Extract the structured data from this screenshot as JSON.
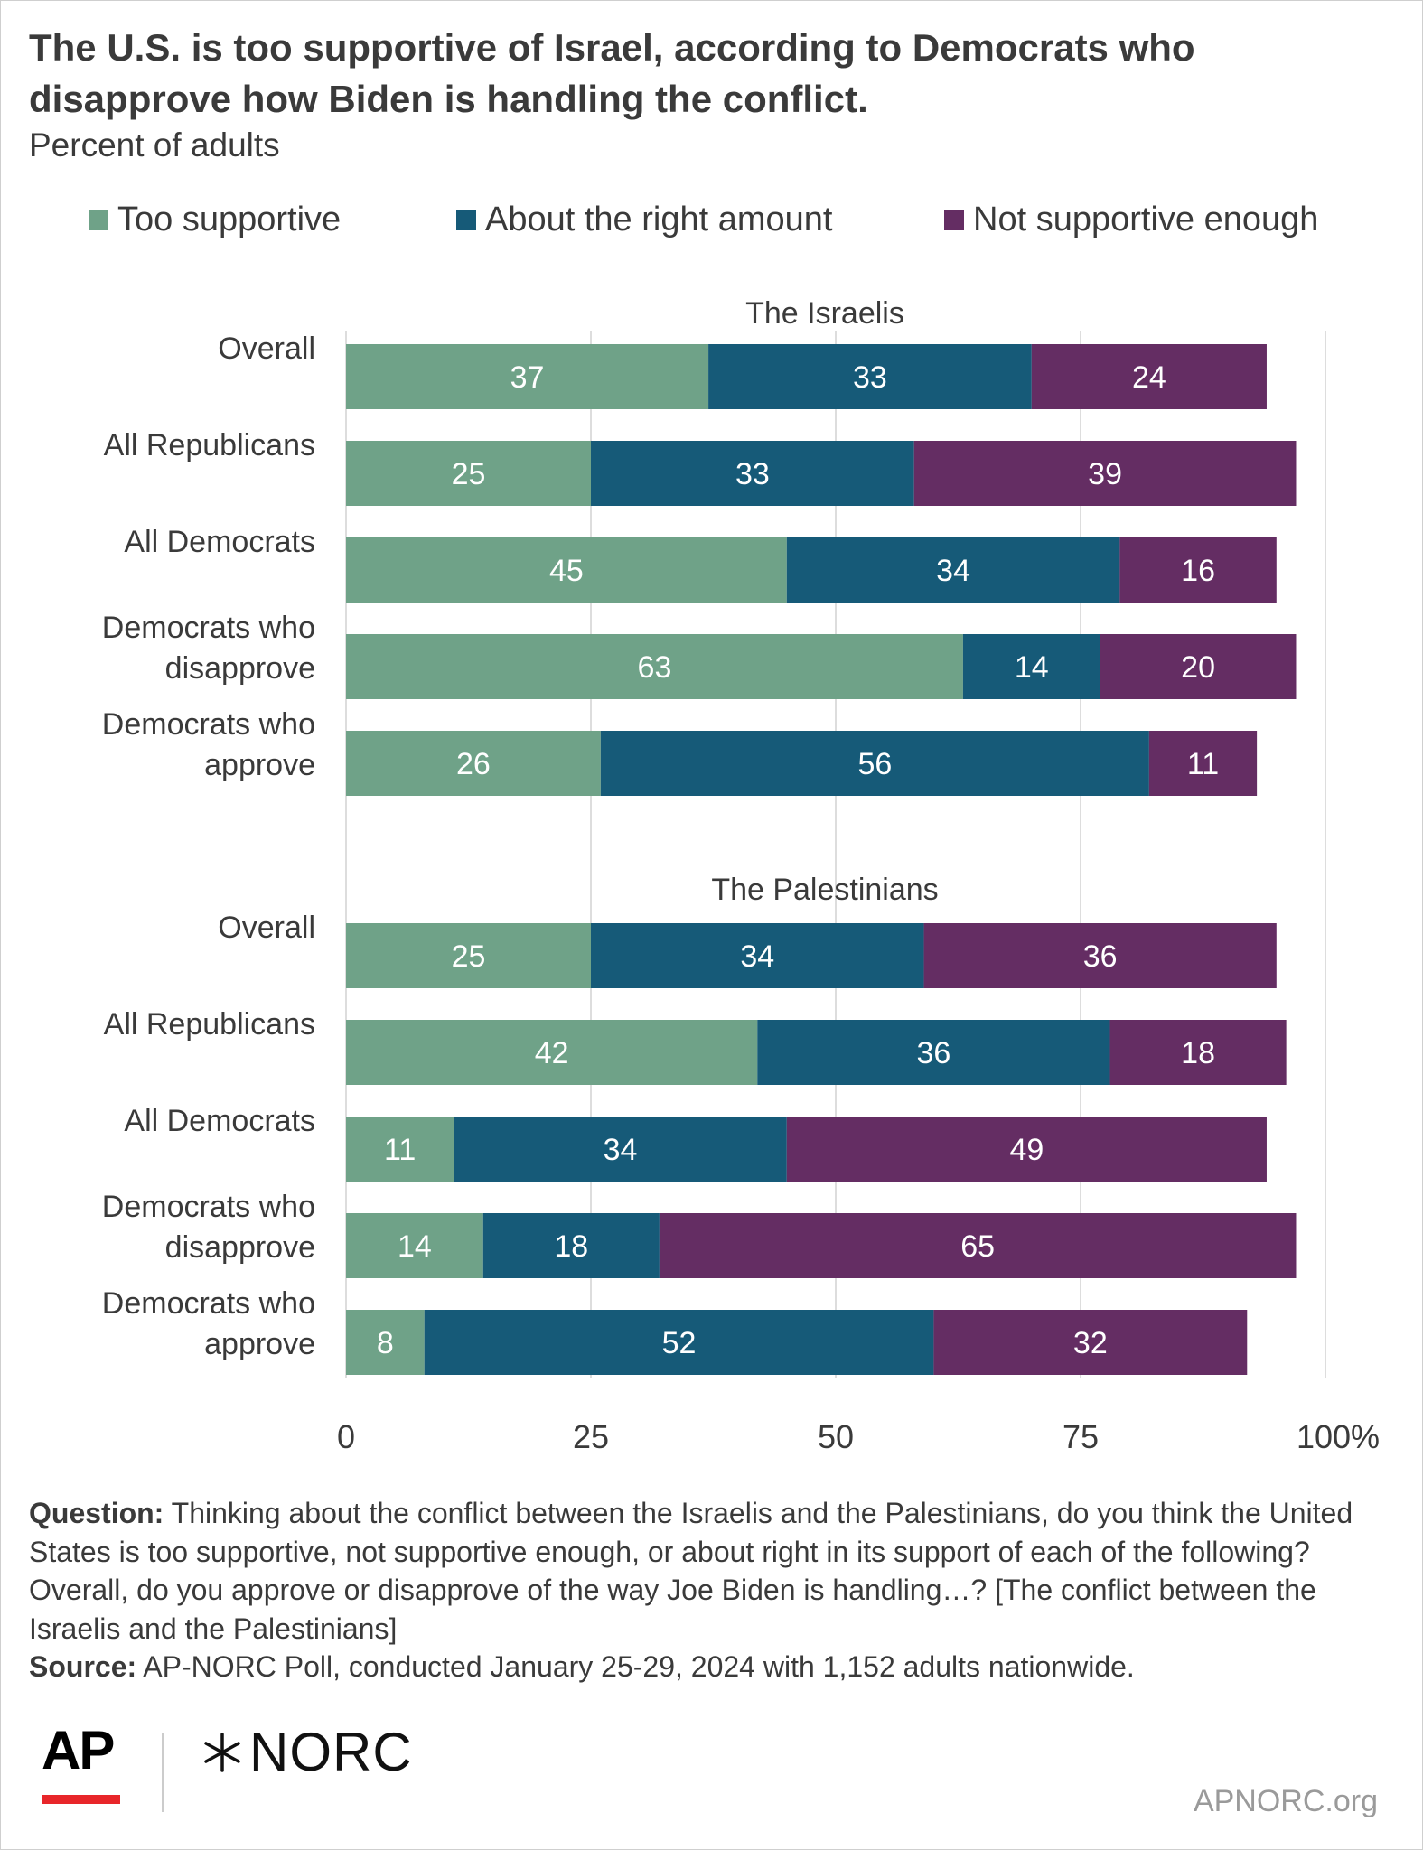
{
  "title": "The U.S. is too supportive of Israel, according to Democrats who disapprove how Biden is handling the conflict.",
  "subtitle": "Percent of adults",
  "colors": {
    "too_supportive": "#6fa288",
    "right_amount": "#165a78",
    "not_enough": "#642d63",
    "grid": "#dddddd",
    "text": "#3a3a3a",
    "ap_red": "#e8262a"
  },
  "chart_data": {
    "type": "bar",
    "orientation": "horizontal",
    "stacked": true,
    "legend_position": "top",
    "grid": true,
    "xlim": [
      0,
      100
    ],
    "x_ticks": [
      "0",
      "25",
      "50",
      "75",
      "100%"
    ],
    "series": [
      {
        "name": "Too supportive",
        "color": "#6fa288"
      },
      {
        "name": "About the right amount",
        "color": "#165a78"
      },
      {
        "name": "Not supportive enough",
        "color": "#642d63"
      }
    ],
    "panels": [
      {
        "title": "The Israelis",
        "categories": [
          "Overall",
          "All Republicans",
          "All Democrats",
          "Democrats who disapprove",
          "Democrats who approve"
        ],
        "category_lines": [
          [
            "Overall"
          ],
          [
            "All Republicans"
          ],
          [
            "All Democrats"
          ],
          [
            "Democrats who",
            "disapprove"
          ],
          [
            "Democrats who",
            "approve"
          ]
        ],
        "values": [
          [
            37,
            33,
            24
          ],
          [
            25,
            33,
            39
          ],
          [
            45,
            34,
            16
          ],
          [
            63,
            14,
            20
          ],
          [
            26,
            56,
            11
          ]
        ]
      },
      {
        "title": "The Palestinians",
        "categories": [
          "Overall",
          "All Republicans",
          "All Democrats",
          "Democrats who disapprove",
          "Democrats who approve"
        ],
        "category_lines": [
          [
            "Overall"
          ],
          [
            "All Republicans"
          ],
          [
            "All Democrats"
          ],
          [
            "Democrats who",
            "disapprove"
          ],
          [
            "Democrats who",
            "approve"
          ]
        ],
        "values": [
          [
            25,
            34,
            36
          ],
          [
            42,
            36,
            18
          ],
          [
            11,
            34,
            49
          ],
          [
            14,
            18,
            65
          ],
          [
            8,
            52,
            32
          ]
        ]
      }
    ]
  },
  "footnote": {
    "question_label": "Question:",
    "question_text": " Thinking about the conflict between the Israelis and the Palestinians, do you think the United States is too supportive, not supportive enough, or about right in its support of each of the following? Overall, do you approve or disapprove of the way Joe Biden is handling…? [The conflict between the Israelis and the Palestinians]",
    "source_label": "Source:",
    "source_text": " AP-NORC Poll, conducted January 25-29, 2024 with 1,152 adults nationwide."
  },
  "logos": {
    "ap": "AP",
    "norc": "NORC",
    "norc_icon": "star-asterisk-icon"
  },
  "site": "APNORC.org"
}
